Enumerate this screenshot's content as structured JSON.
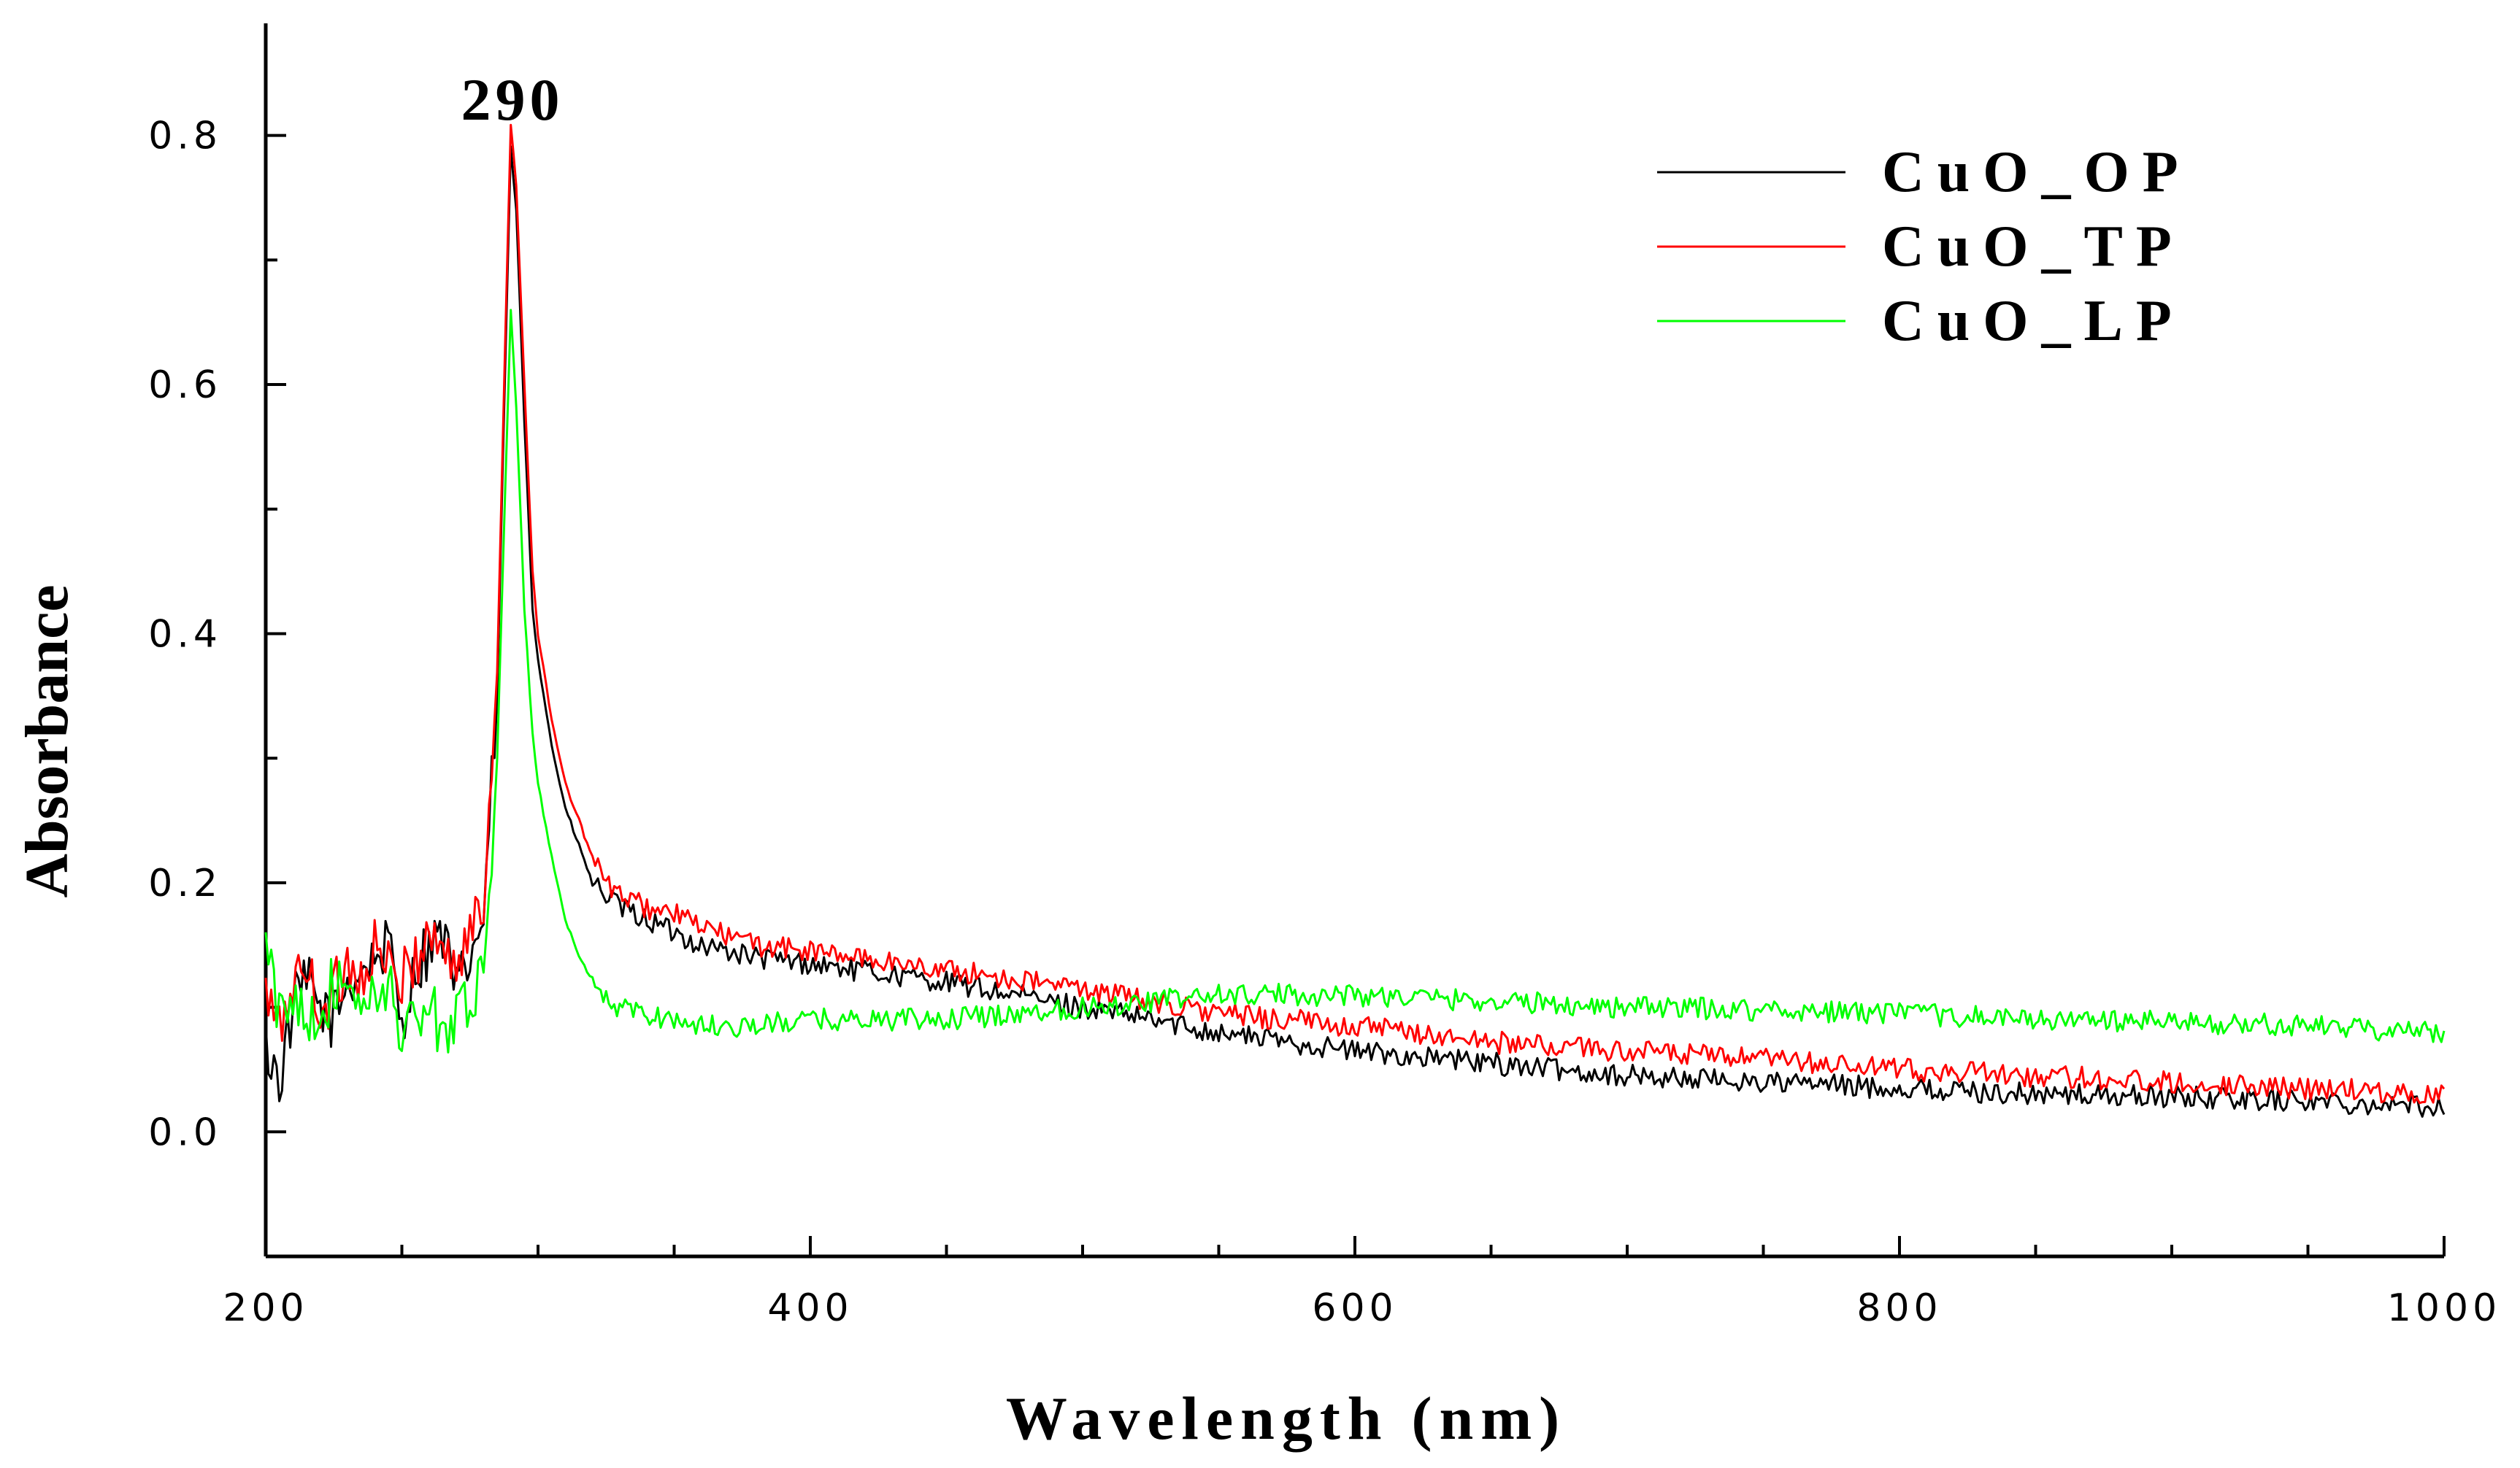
{
  "chart_data": {
    "type": "line",
    "title": "",
    "xlabel": "Wavelength (nm)",
    "ylabel": "Absorbance",
    "xlim": [
      200,
      1000
    ],
    "ylim": [
      -0.1,
      0.89
    ],
    "xticks": [
      200,
      400,
      600,
      800,
      1000
    ],
    "xtick_labels": [
      "200",
      "400",
      "600",
      "800",
      "1000"
    ],
    "yticks": [
      0.0,
      0.2,
      0.4,
      0.6,
      0.8
    ],
    "ytick_labels": [
      "0.0",
      "0.2",
      "0.4",
      "0.6",
      "0.8"
    ],
    "grid": false,
    "legend_position": "top-right",
    "annotations": [
      {
        "text": "290",
        "x": 290,
        "y": 0.85
      }
    ],
    "series": [
      {
        "name": "CuO_OP",
        "color": "#000000",
        "x": [
          200,
          205,
          210,
          215,
          220,
          225,
          230,
          235,
          240,
          245,
          250,
          255,
          260,
          265,
          270,
          275,
          280,
          285,
          288,
          290,
          292,
          295,
          298,
          300,
          305,
          310,
          315,
          320,
          325,
          330,
          340,
          350,
          360,
          380,
          400,
          450,
          500,
          550,
          600,
          650,
          700,
          750,
          800,
          850,
          900,
          950,
          1000
        ],
        "y": [
          0.07,
          0.04,
          0.1,
          0.12,
          0.1,
          0.09,
          0.12,
          0.13,
          0.14,
          0.15,
          0.09,
          0.13,
          0.15,
          0.16,
          0.11,
          0.14,
          0.17,
          0.35,
          0.62,
          0.79,
          0.74,
          0.57,
          0.42,
          0.38,
          0.31,
          0.26,
          0.23,
          0.2,
          0.19,
          0.18,
          0.17,
          0.16,
          0.15,
          0.14,
          0.135,
          0.12,
          0.1,
          0.08,
          0.065,
          0.055,
          0.045,
          0.04,
          0.035,
          0.03,
          0.028,
          0.025,
          0.02
        ]
      },
      {
        "name": "CuO_TP",
        "color": "#ff0000",
        "x": [
          200,
          205,
          210,
          215,
          220,
          225,
          230,
          235,
          240,
          245,
          250,
          255,
          260,
          265,
          270,
          275,
          280,
          285,
          288,
          290,
          292,
          295,
          298,
          300,
          305,
          310,
          315,
          320,
          325,
          330,
          340,
          350,
          360,
          380,
          400,
          450,
          500,
          550,
          600,
          650,
          700,
          750,
          800,
          850,
          900,
          950,
          1000
        ],
        "y": [
          0.11,
          0.08,
          0.12,
          0.13,
          0.1,
          0.11,
          0.14,
          0.12,
          0.15,
          0.13,
          0.12,
          0.14,
          0.16,
          0.15,
          0.13,
          0.16,
          0.18,
          0.37,
          0.64,
          0.81,
          0.76,
          0.6,
          0.45,
          0.4,
          0.33,
          0.28,
          0.25,
          0.22,
          0.2,
          0.19,
          0.18,
          0.175,
          0.165,
          0.15,
          0.145,
          0.13,
          0.115,
          0.095,
          0.085,
          0.072,
          0.065,
          0.058,
          0.05,
          0.045,
          0.04,
          0.035,
          0.03
        ]
      },
      {
        "name": "CuO_LP",
        "color": "#00ff00",
        "x": [
          200,
          205,
          210,
          215,
          220,
          225,
          230,
          235,
          240,
          245,
          250,
          255,
          260,
          265,
          270,
          275,
          280,
          285,
          288,
          290,
          292,
          295,
          298,
          300,
          305,
          310,
          315,
          320,
          325,
          330,
          340,
          350,
          360,
          380,
          400,
          450,
          500,
          550,
          600,
          650,
          700,
          750,
          800,
          850,
          900,
          950,
          1000
        ],
        "y": [
          0.15,
          0.09,
          0.11,
          0.1,
          0.09,
          0.12,
          0.1,
          0.11,
          0.1,
          0.12,
          0.08,
          0.09,
          0.1,
          0.08,
          0.1,
          0.11,
          0.12,
          0.3,
          0.52,
          0.66,
          0.58,
          0.42,
          0.32,
          0.28,
          0.22,
          0.17,
          0.14,
          0.12,
          0.105,
          0.1,
          0.095,
          0.09,
          0.085,
          0.085,
          0.09,
          0.09,
          0.1,
          0.11,
          0.11,
          0.105,
          0.1,
          0.098,
          0.095,
          0.09,
          0.088,
          0.085,
          0.08
        ]
      }
    ]
  }
}
